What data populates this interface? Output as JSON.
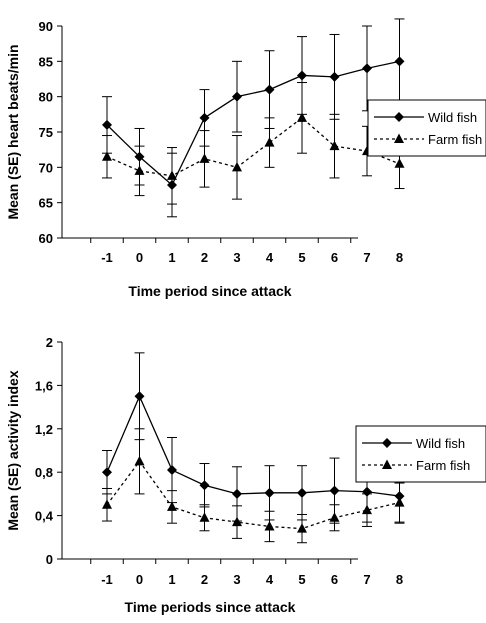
{
  "chart_data": [
    {
      "type": "line",
      "xlabel": "Time period since attack",
      "ylabel": "Mean (SE) heart beats/min",
      "x": [
        -1,
        0,
        1,
        2,
        3,
        4,
        5,
        6,
        7,
        8
      ],
      "x_tick_labels": [
        "-1",
        "0",
        "1",
        "2",
        "3",
        "4",
        "5",
        "6",
        "7",
        "8"
      ],
      "ylim": [
        60,
        90
      ],
      "y_ticks": [
        60,
        65,
        70,
        75,
        80,
        85,
        90
      ],
      "y_tick_labels": [
        "60",
        "65",
        "70",
        "75",
        "80",
        "85",
        "90"
      ],
      "legend_position": "right",
      "series": [
        {
          "name": "Wild fish",
          "style": "solid",
          "marker": "diamond",
          "values": [
            76,
            71.5,
            67.5,
            77,
            80,
            81,
            83,
            82.8,
            84,
            85
          ],
          "error": [
            4,
            4,
            4.5,
            4,
            5,
            5.5,
            5.5,
            6,
            6,
            6
          ]
        },
        {
          "name": "Farm fish",
          "style": "dotted",
          "marker": "triangle",
          "values": [
            71.5,
            69.5,
            68.8,
            71.2,
            70,
            73.5,
            77,
            73,
            72.3,
            70.5
          ],
          "error": [
            3,
            3.5,
            4,
            4,
            4.5,
            3.5,
            5,
            4.5,
            3.5,
            3.5
          ]
        }
      ]
    },
    {
      "type": "line",
      "xlabel": "Time periods since attack",
      "ylabel": "Mean (SE) activity index",
      "x": [
        -1,
        0,
        1,
        2,
        3,
        4,
        5,
        6,
        7,
        8
      ],
      "x_tick_labels": [
        "-1",
        "0",
        "1",
        "2",
        "3",
        "4",
        "5",
        "6",
        "7",
        "8"
      ],
      "ylim": [
        0,
        2
      ],
      "y_ticks": [
        0,
        0.4,
        0.8,
        1.2,
        1.6,
        2
      ],
      "y_tick_labels": [
        "0",
        "0,4",
        "0,8",
        "1,2",
        "1,6",
        "2"
      ],
      "legend_position": "right",
      "series": [
        {
          "name": "Wild fish",
          "style": "solid",
          "marker": "diamond",
          "values": [
            0.8,
            1.5,
            0.82,
            0.68,
            0.6,
            0.61,
            0.61,
            0.63,
            0.62,
            0.58
          ],
          "error": [
            0.2,
            0.4,
            0.3,
            0.2,
            0.25,
            0.25,
            0.25,
            0.3,
            0.28,
            0.25
          ]
        },
        {
          "name": "Farm fish",
          "style": "dotted",
          "marker": "triangle",
          "values": [
            0.5,
            0.9,
            0.48,
            0.38,
            0.34,
            0.3,
            0.28,
            0.38,
            0.45,
            0.52
          ],
          "error": [
            0.15,
            0.3,
            0.15,
            0.12,
            0.15,
            0.14,
            0.13,
            0.12,
            0.15,
            0.18
          ]
        }
      ]
    }
  ]
}
